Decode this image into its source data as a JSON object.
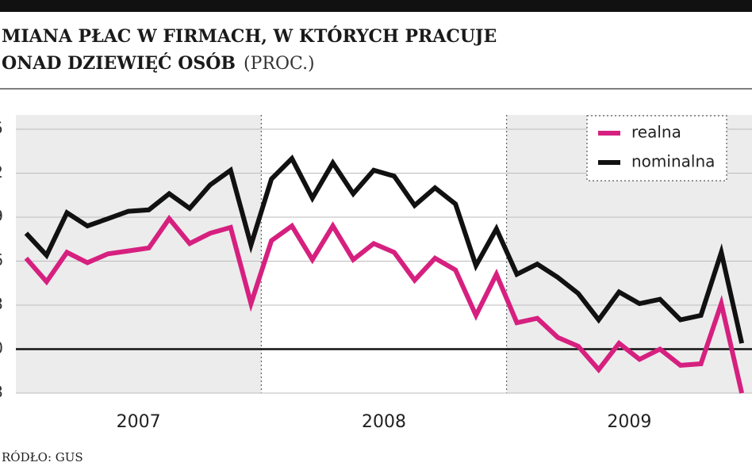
{
  "chart_data": {
    "type": "line",
    "title": [
      "MIANA PŁAC W FIRMACH, W KTÓRYCH PRACUJE",
      "ONAD DZIEWIĘĆ OSÓB"
    ],
    "unit": "(PROC.)",
    "source": "RÓDŁO: GUS",
    "year_labels": [
      "2007",
      "2008",
      "2009"
    ],
    "categories": [
      null,
      null,
      null,
      null,
      null,
      null,
      null,
      null,
      null,
      null,
      null,
      null,
      null,
      null,
      null,
      null,
      null,
      null,
      null,
      null,
      null,
      null,
      null,
      null,
      null,
      null,
      null,
      null,
      null,
      null,
      null,
      null,
      null,
      null,
      null,
      null
    ],
    "series": [
      {
        "name": "realna",
        "color": "#d6207f",
        "values": [
          6.2,
          4.6,
          6.6,
          5.9,
          6.5,
          6.7,
          6.9,
          8.9,
          7.2,
          7.9,
          8.3,
          3.1,
          7.4,
          8.4,
          6.1,
          8.4,
          6.1,
          7.2,
          6.6,
          4.7,
          6.2,
          5.4,
          2.3,
          5.1,
          1.8,
          2.1,
          0.8,
          0.2,
          -1.4,
          0.4,
          -0.7,
          0.0,
          -1.1,
          -1.0,
          3.1,
          -3.0
        ]
      },
      {
        "name": "nominalna",
        "color": "#111111",
        "values": [
          7.9,
          6.4,
          9.3,
          8.4,
          8.9,
          9.4,
          9.5,
          10.6,
          9.6,
          11.2,
          12.2,
          7.1,
          11.6,
          13.0,
          10.3,
          12.7,
          10.6,
          12.2,
          11.8,
          9.8,
          11.0,
          9.9,
          5.7,
          8.2,
          5.1,
          5.8,
          4.9,
          3.8,
          2.0,
          3.9,
          3.1,
          3.4,
          2.0,
          2.3,
          6.6,
          0.4
        ]
      }
    ],
    "ylim": [
      -3,
      15
    ],
    "yticks": [
      {
        "value": 15,
        "label": "5"
      },
      {
        "value": 12,
        "label": "2"
      },
      9,
      6,
      3,
      0,
      {
        "value": -3,
        "label": "3"
      }
    ],
    "grid": true,
    "legend": "top-right"
  }
}
